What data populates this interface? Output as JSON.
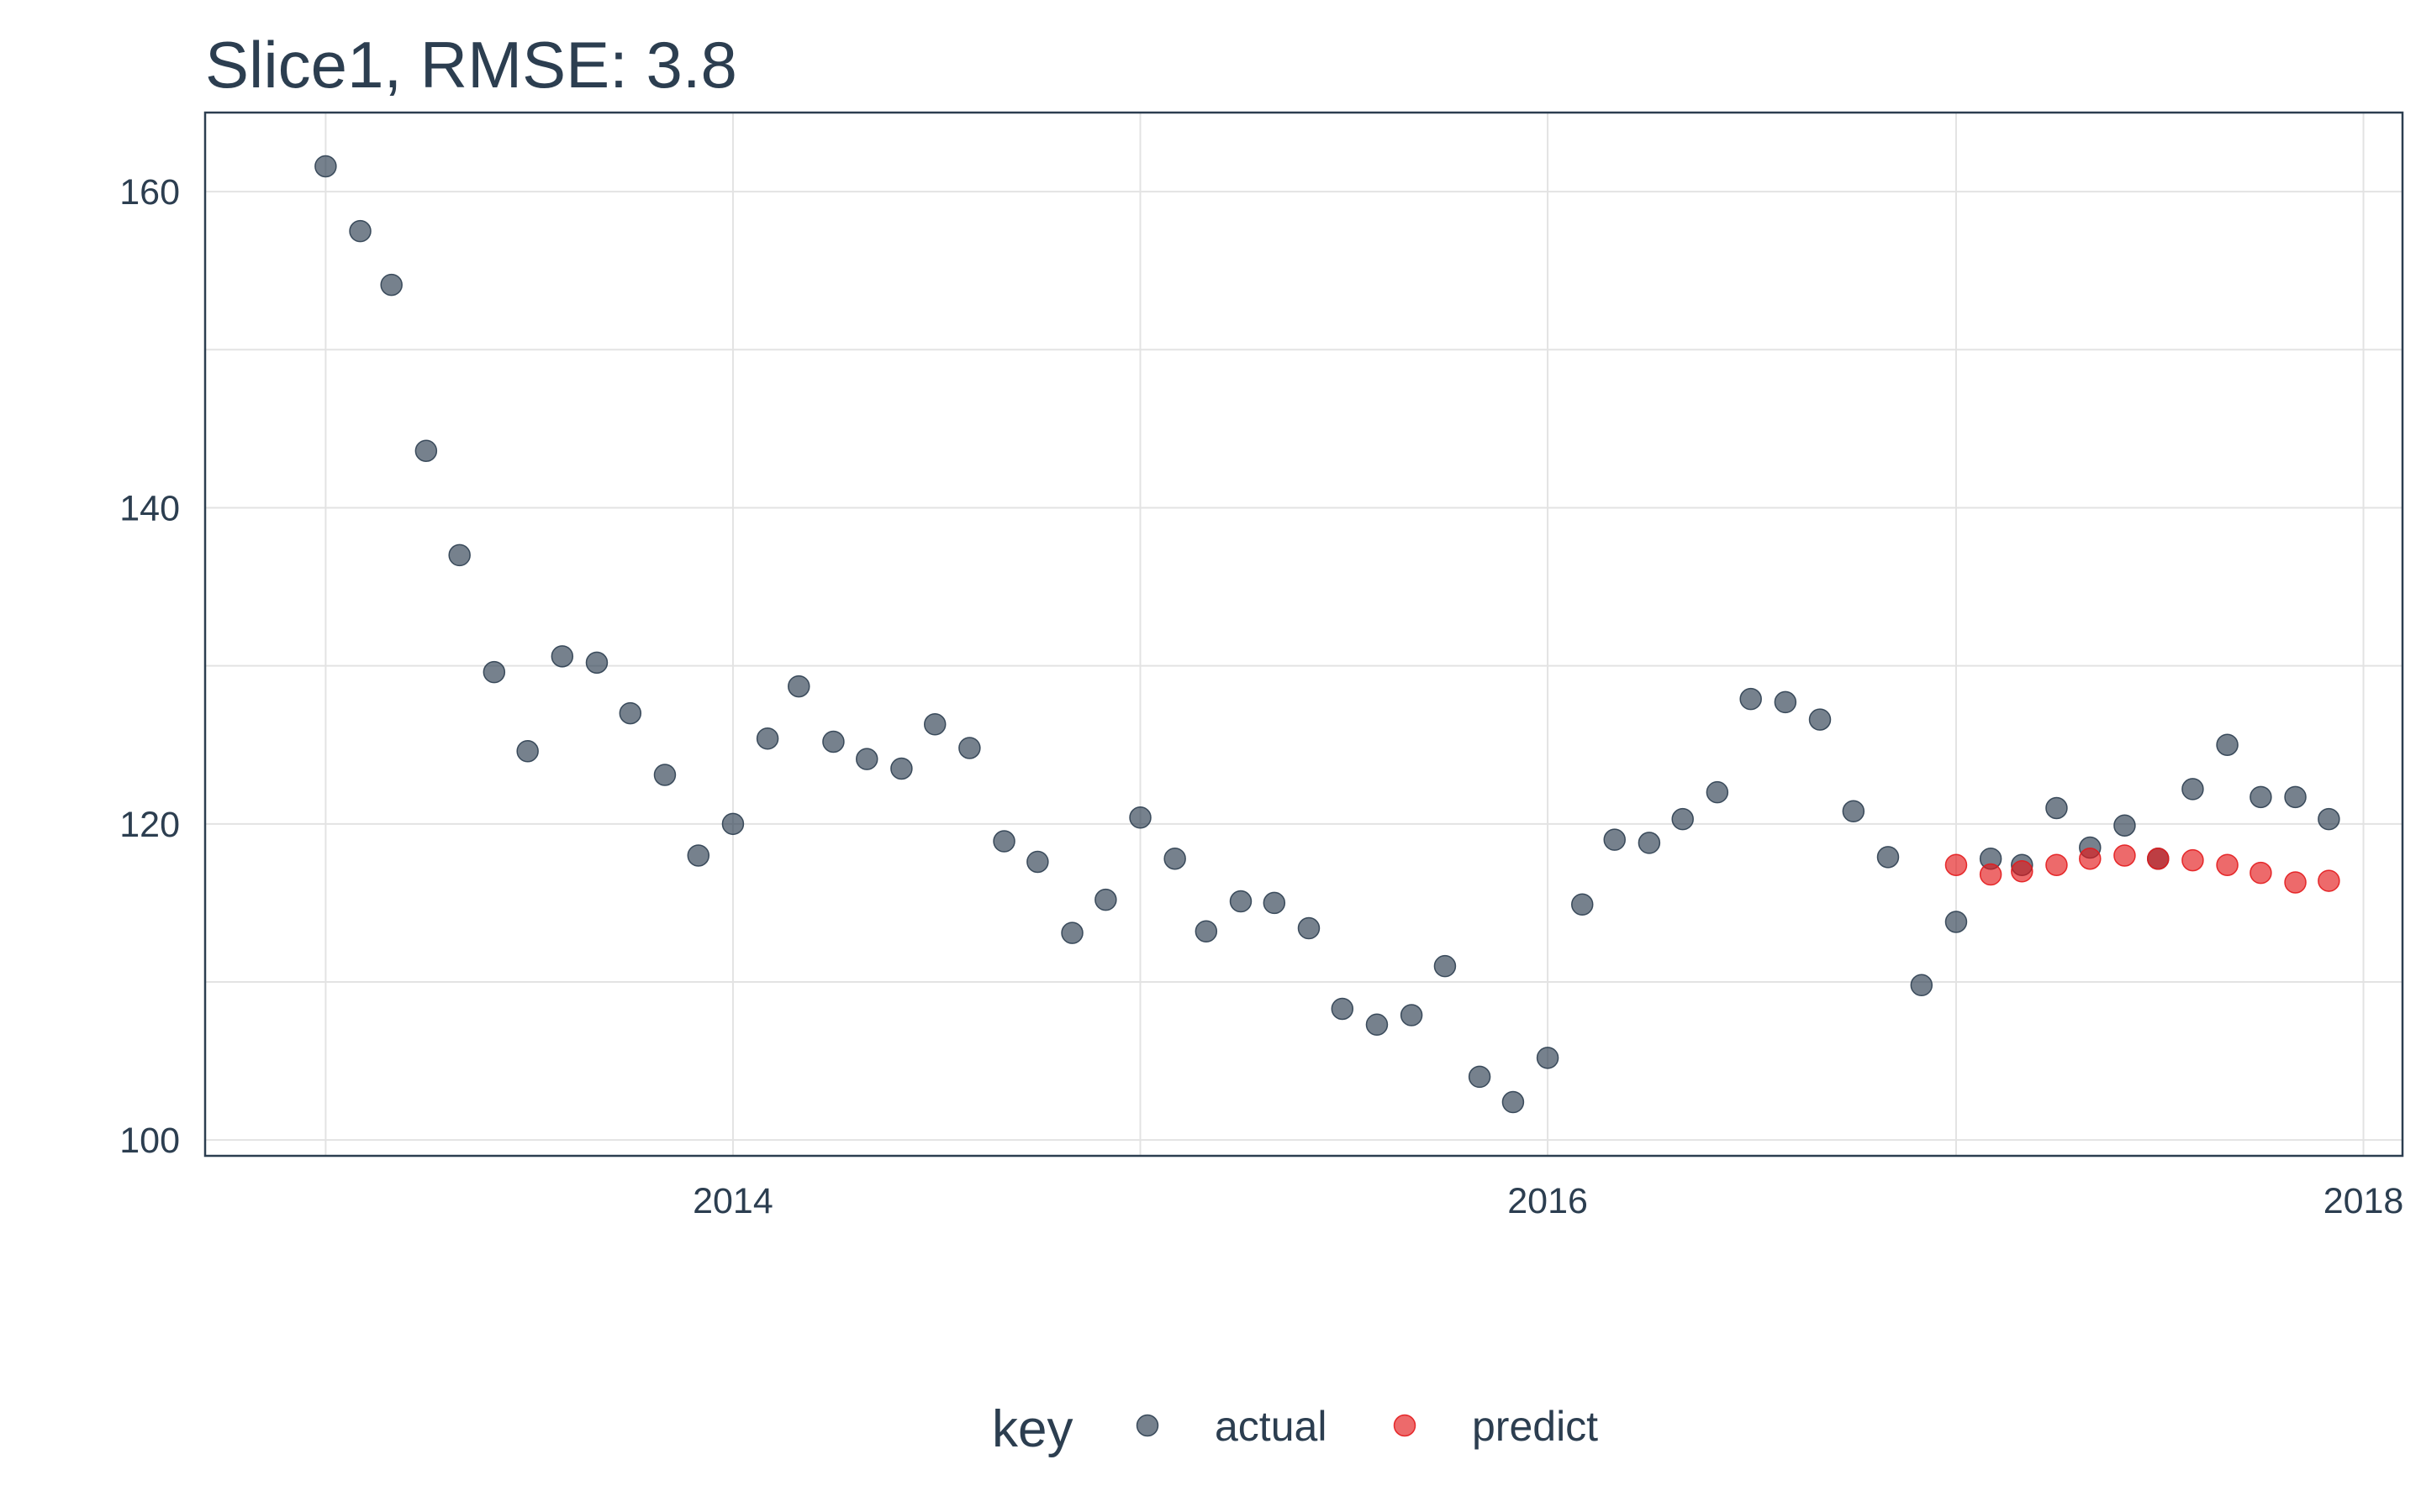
{
  "chart_data": {
    "type": "scatter",
    "title": "Slice1, RMSE: 3.8",
    "xlabel": "",
    "ylabel": "",
    "x_axis": {
      "type": "date",
      "ticks": [
        "2014",
        "2016",
        "2018"
      ],
      "xlim": [
        "2012-09-15",
        "2018-02-05"
      ]
    },
    "y_axis": {
      "ticks": [
        100,
        120,
        140,
        160
      ],
      "ylim": [
        99,
        165
      ]
    },
    "grid": true,
    "legend": {
      "title": "key",
      "position": "bottom",
      "entries": [
        {
          "label": "actual",
          "color": "#2c3e50"
        },
        {
          "label": "predict",
          "color": "#e31a1c"
        }
      ]
    },
    "series": [
      {
        "name": "actual",
        "color": "#2c3e50",
        "opacity": 0.65,
        "points": [
          [
            "2013-01-01",
            161.6
          ],
          [
            "2013-02-01",
            157.5
          ],
          [
            "2013-03-01",
            154.1
          ],
          [
            "2013-04-01",
            143.6
          ],
          [
            "2013-05-01",
            137.0
          ],
          [
            "2013-06-01",
            129.6
          ],
          [
            "2013-07-01",
            124.6
          ],
          [
            "2013-08-01",
            130.6
          ],
          [
            "2013-09-01",
            130.2
          ],
          [
            "2013-10-01",
            127.0
          ],
          [
            "2013-11-01",
            123.1
          ],
          [
            "2013-12-01",
            118.0
          ],
          [
            "2014-01-01",
            120.0
          ],
          [
            "2014-02-01",
            125.4
          ],
          [
            "2014-03-01",
            128.7
          ],
          [
            "2014-04-01",
            125.2
          ],
          [
            "2014-05-01",
            124.1
          ],
          [
            "2014-06-01",
            123.5
          ],
          [
            "2014-07-01",
            126.3
          ],
          [
            "2014-08-01",
            124.8
          ],
          [
            "2014-09-01",
            118.9
          ],
          [
            "2014-10-01",
            117.6
          ],
          [
            "2014-11-01",
            113.1
          ],
          [
            "2014-12-01",
            115.2
          ],
          [
            "2015-01-01",
            120.4
          ],
          [
            "2015-02-01",
            117.8
          ],
          [
            "2015-03-01",
            113.2
          ],
          [
            "2015-04-01",
            115.1
          ],
          [
            "2015-05-01",
            115.0
          ],
          [
            "2015-06-01",
            113.4
          ],
          [
            "2015-07-01",
            108.3
          ],
          [
            "2015-08-01",
            107.3
          ],
          [
            "2015-09-01",
            107.9
          ],
          [
            "2015-10-01",
            111.0
          ],
          [
            "2015-11-01",
            104.0
          ],
          [
            "2015-12-01",
            102.4
          ],
          [
            "2016-01-01",
            105.2
          ],
          [
            "2016-02-01",
            114.9
          ],
          [
            "2016-03-01",
            119.0
          ],
          [
            "2016-04-01",
            118.8
          ],
          [
            "2016-05-01",
            120.3
          ],
          [
            "2016-06-01",
            122.0
          ],
          [
            "2016-07-01",
            127.9
          ],
          [
            "2016-08-01",
            127.7
          ],
          [
            "2016-09-01",
            126.6
          ],
          [
            "2016-10-01",
            120.8
          ],
          [
            "2016-11-01",
            117.9
          ],
          [
            "2016-12-01",
            109.8
          ],
          [
            "2017-01-01",
            113.8
          ],
          [
            "2017-02-01",
            117.8
          ],
          [
            "2017-03-01",
            117.4
          ],
          [
            "2017-04-01",
            121.0
          ],
          [
            "2017-05-01",
            118.5
          ],
          [
            "2017-06-01",
            119.9
          ],
          [
            "2017-07-01",
            117.8
          ],
          [
            "2017-08-01",
            122.2
          ],
          [
            "2017-09-01",
            125.0
          ],
          [
            "2017-10-01",
            121.7
          ],
          [
            "2017-11-01",
            121.7
          ],
          [
            "2017-12-01",
            120.3
          ]
        ]
      },
      {
        "name": "predict",
        "color": "#e31a1c",
        "opacity": 0.65,
        "points": [
          [
            "2017-01-01",
            117.4
          ],
          [
            "2017-02-01",
            116.8
          ],
          [
            "2017-03-01",
            117.0
          ],
          [
            "2017-04-01",
            117.4
          ],
          [
            "2017-05-01",
            117.8
          ],
          [
            "2017-06-01",
            118.0
          ],
          [
            "2017-07-01",
            117.8
          ],
          [
            "2017-08-01",
            117.7
          ],
          [
            "2017-09-01",
            117.4
          ],
          [
            "2017-10-01",
            116.9
          ],
          [
            "2017-11-01",
            116.3
          ],
          [
            "2017-12-01",
            116.4
          ]
        ]
      }
    ]
  }
}
